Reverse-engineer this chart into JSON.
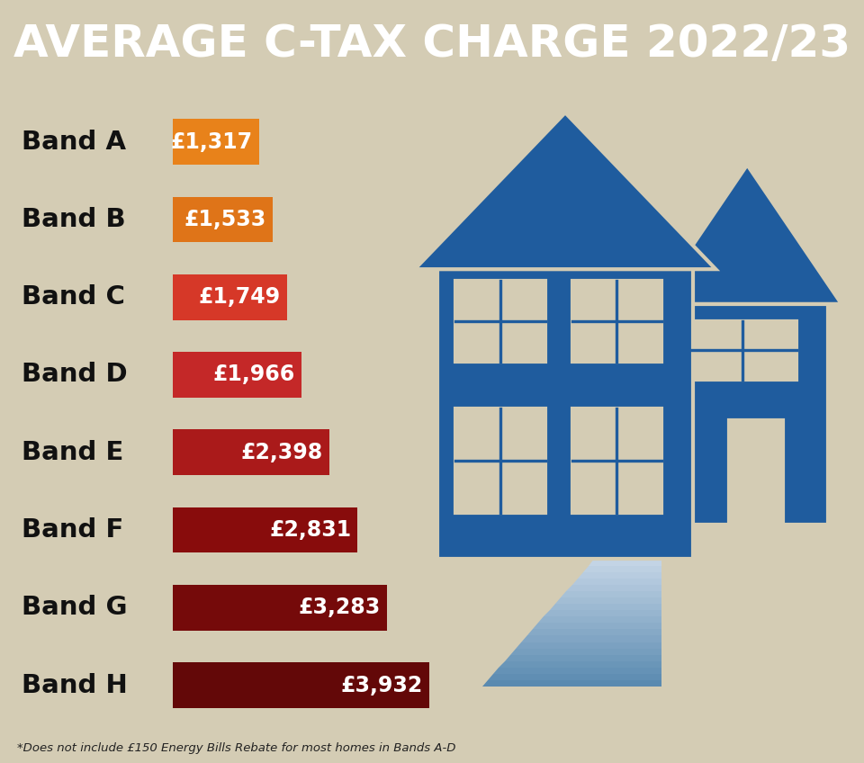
{
  "title": "AVERAGE C-TAX CHARGE 2022/23",
  "title_bg_color": "#1f5c9e",
  "title_text_color": "#ffffff",
  "background_color": "#d4ccb4",
  "bands": [
    "Band A",
    "Band B",
    "Band C",
    "Band D",
    "Band E",
    "Band F",
    "Band G",
    "Band H"
  ],
  "values": [
    1317,
    1533,
    1749,
    1966,
    2398,
    2831,
    3283,
    3932
  ],
  "labels": [
    "£1,317",
    "£1,533",
    "£1,749",
    "£1,966",
    "£2,398",
    "£2,831",
    "£3,283",
    "£3,932"
  ],
  "bar_colors": [
    "#e8821a",
    "#df7418",
    "#d63828",
    "#c42828",
    "#aa1a1a",
    "#880c0c",
    "#750a0a",
    "#630808"
  ],
  "footnote": "*Does not include £150 Energy Bills Rebate for most homes in Bands A-D",
  "house_color": "#1f5c9e",
  "house_outline_color": "#d4ccb4",
  "path_color_dark": "#5a8ab0",
  "path_color_light": "#c8d8e8"
}
